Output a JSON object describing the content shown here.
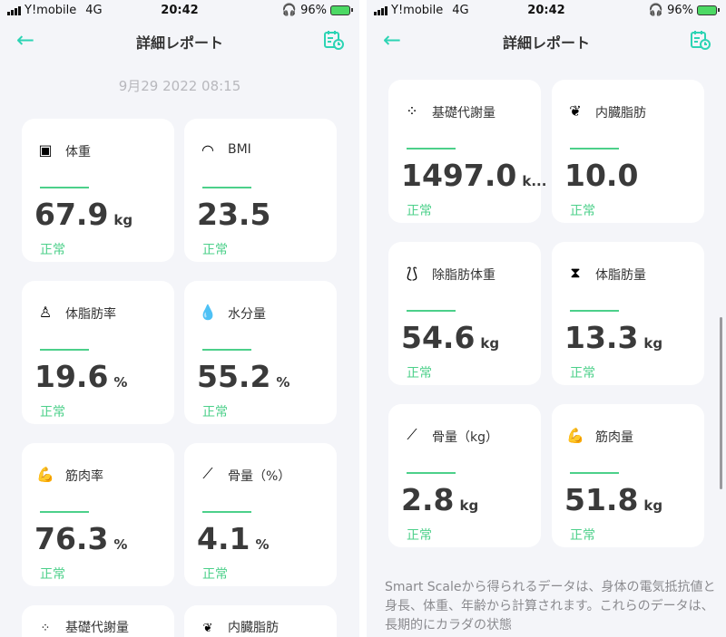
{
  "status": {
    "carrier": "Y!mobile",
    "network": "4G",
    "time": "20:42",
    "battery": "96%"
  },
  "nav": {
    "title": "詳細レポート",
    "back_icon": "arrow-left-icon",
    "right_icon": "calendar-clock-icon"
  },
  "date": "9月29 2022 08:15",
  "accent": "#2dd4b4",
  "normal_color": "#4cd08a",
  "left_cards": [
    {
      "icon": "scale-icon",
      "label": "体重",
      "value": "67.9",
      "unit": "kg",
      "status": "正常"
    },
    {
      "icon": "bmi-gauge-icon",
      "label": "BMI",
      "value": "23.5",
      "unit": "",
      "status": "正常"
    },
    {
      "icon": "body-fat-icon",
      "label": "体脂肪率",
      "value": "19.6",
      "unit": "%",
      "status": "正常"
    },
    {
      "icon": "water-drop-icon",
      "label": "水分量",
      "value": "55.2",
      "unit": "%",
      "status": "正常"
    },
    {
      "icon": "muscle-arm-icon",
      "label": "筋肉率",
      "value": "76.3",
      "unit": "%",
      "status": "正常"
    },
    {
      "icon": "bone-icon",
      "label": "骨量（%）",
      "value": "4.1",
      "unit": "%",
      "status": "正常"
    },
    {
      "icon": "molecule-icon",
      "label": "基礎代謝量",
      "value": "",
      "unit": "",
      "status": ""
    },
    {
      "icon": "lungs-icon",
      "label": "内臓脂肪",
      "value": "",
      "unit": "",
      "status": ""
    }
  ],
  "right_cards": [
    {
      "icon": "molecule-icon",
      "label": "基礎代謝量",
      "value": "1497.0",
      "unit": "k...",
      "status": "正常"
    },
    {
      "icon": "lungs-icon",
      "label": "内臓脂肪",
      "value": "10.0",
      "unit": "",
      "status": "正常"
    },
    {
      "icon": "lean-body-icon",
      "label": "除脂肪体重",
      "value": "54.6",
      "unit": "kg",
      "status": "正常"
    },
    {
      "icon": "waist-icon",
      "label": "体脂肪量",
      "value": "13.3",
      "unit": "kg",
      "status": "正常"
    },
    {
      "icon": "bone-icon",
      "label": "骨量（kg）",
      "value": "2.8",
      "unit": "kg",
      "status": "正常"
    },
    {
      "icon": "muscle-arm-icon",
      "label": "筋肉量",
      "value": "51.8",
      "unit": "kg",
      "status": "正常"
    }
  ],
  "note": "Smart Scaleから得られるデータは、身体の電気抵抗値と身長、体重、年齢から計算されます。これらのデータは、長期的にカラダの状態"
}
